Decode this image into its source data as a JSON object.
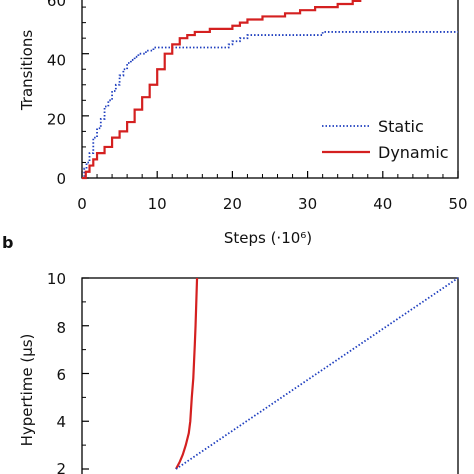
{
  "chart_data": [
    {
      "panel": "",
      "type": "line",
      "xlabel": "Steps (·10⁶)",
      "ylabel": "Transitions",
      "xlim": [
        0,
        50
      ],
      "ylim": [
        0,
        60
      ],
      "xticks": [
        "0",
        "10",
        "20",
        "30",
        "40",
        "50"
      ],
      "yticks": [
        "0",
        "20",
        "40",
        "60"
      ],
      "legend_position": "bottom-right",
      "series": [
        {
          "name": "Static",
          "color": "#1f3fbf",
          "style": "dotted",
          "x": [
            0,
            0.3,
            0.6,
            1,
            1.5,
            2,
            2.5,
            3,
            3.5,
            4,
            4.5,
            5,
            5.5,
            6,
            6.5,
            7,
            7.5,
            8,
            8.5,
            9,
            9.5,
            10,
            11,
            12,
            14,
            16,
            18,
            19,
            19.5,
            20,
            20.5,
            21,
            22,
            25,
            28,
            30,
            31,
            32,
            35,
            40,
            45,
            50
          ],
          "y": [
            0,
            3,
            5,
            8,
            13,
            16,
            19,
            23,
            25,
            28,
            30,
            33,
            35,
            37,
            38,
            39,
            40,
            40,
            41,
            41,
            42,
            42,
            42,
            42,
            42,
            42,
            42,
            42,
            43,
            44,
            44,
            45,
            46,
            46,
            46,
            46,
            46,
            47,
            47,
            47,
            47,
            47
          ]
        },
        {
          "name": "Dynamic",
          "color": "#d42020",
          "style": "solid",
          "x": [
            0,
            0.5,
            1,
            1.5,
            2,
            3,
            4,
            5,
            6,
            7,
            8,
            9,
            10,
            11,
            12,
            13,
            14,
            15,
            16,
            17,
            18,
            19,
            20,
            21,
            22,
            23,
            24,
            25,
            26,
            27,
            28,
            29,
            30,
            31,
            32,
            33,
            34,
            35,
            36,
            37,
            38,
            39,
            40,
            41,
            42,
            43,
            43.5
          ],
          "y": [
            0,
            2,
            4,
            6,
            8,
            10,
            13,
            15,
            18,
            22,
            26,
            30,
            35,
            40,
            43,
            45,
            46,
            47,
            47,
            48,
            48,
            48,
            49,
            50,
            51,
            51,
            52,
            52,
            52,
            53,
            53,
            54,
            54,
            55,
            55,
            55,
            56,
            56,
            57,
            58,
            58,
            58,
            59,
            59,
            59,
            60,
            61
          ]
        }
      ]
    },
    {
      "panel": "b",
      "type": "line",
      "xlabel": "",
      "ylabel": "Hypertime (μs)",
      "xlim": [
        0,
        50
      ],
      "ylim": [
        2,
        10
      ],
      "yticks": [
        "2",
        "4",
        "6",
        "8",
        "10"
      ],
      "series": [
        {
          "name": "",
          "color": "#d42020",
          "style": "solid",
          "x": [
            12.5,
            13.0,
            13.4,
            13.8,
            14.2,
            14.4,
            14.6,
            14.8,
            14.9,
            15.0,
            15.1,
            15.2,
            15.3
          ],
          "y": [
            2.0,
            2.3,
            2.6,
            3.0,
            3.5,
            4.0,
            5.0,
            5.8,
            6.5,
            7.2,
            8.0,
            9.0,
            10.0
          ]
        },
        {
          "name": "",
          "color": "#1f3fbf",
          "style": "dotted",
          "x": [
            12.5,
            50
          ],
          "y": [
            2.0,
            10.0
          ]
        }
      ]
    }
  ]
}
